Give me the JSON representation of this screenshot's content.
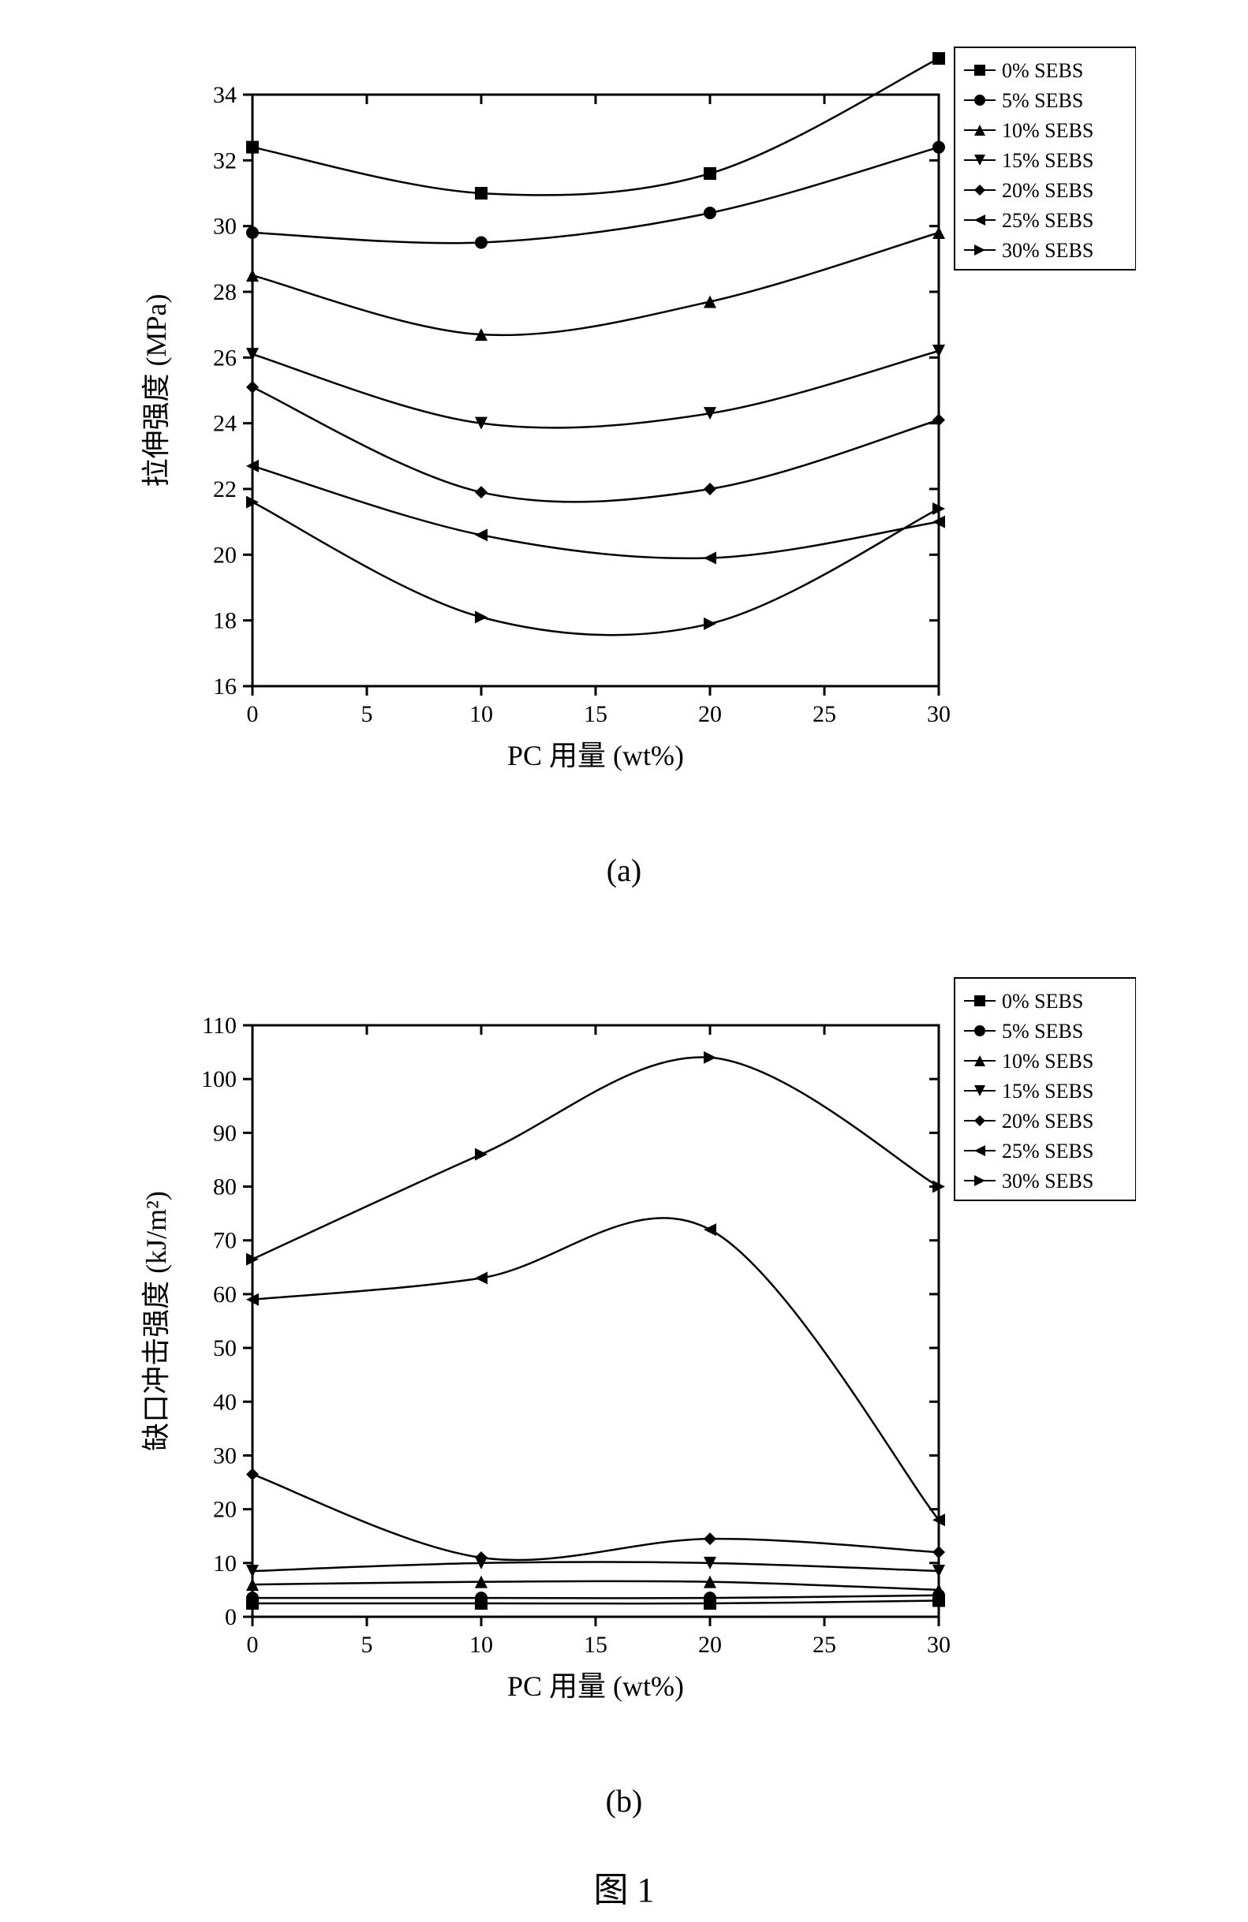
{
  "figure_label": "图 1",
  "caption_a": "(a)",
  "caption_b": "(b)",
  "legend_items": [
    {
      "label": "0% SEBS",
      "marker": "square-filled"
    },
    {
      "label": "5% SEBS",
      "marker": "circle-filled"
    },
    {
      "label": "10% SEBS",
      "marker": "triangle-up-filled"
    },
    {
      "label": "15% SEBS",
      "marker": "triangle-down-filled"
    },
    {
      "label": "20% SEBS",
      "marker": "diamond-filled"
    },
    {
      "label": "25% SEBS",
      "marker": "triangle-left-filled"
    },
    {
      "label": "30% SEBS",
      "marker": "triangle-right-filled"
    }
  ],
  "chart_a": {
    "type": "line",
    "xlabel": "PC 用量 (wt%)",
    "ylabel": "拉伸强度 (MPa)",
    "label_fontsize": 36,
    "tick_fontsize": 30,
    "legend_fontsize": 26,
    "line_color": "#000000",
    "marker_color": "#000000",
    "text_color": "#000000",
    "background_color": "#ffffff",
    "axis_color": "#000000",
    "line_width": 2.5,
    "marker_size": 16,
    "xlim": [
      0,
      30
    ],
    "x_ticks": [
      0,
      5,
      10,
      15,
      20,
      25,
      30
    ],
    "ylim": [
      16,
      34
    ],
    "y_ticks": [
      16,
      18,
      20,
      22,
      24,
      26,
      28,
      30,
      32,
      34
    ],
    "grid": false,
    "series": [
      {
        "name": "0% SEBS",
        "x": [
          0,
          10,
          20,
          30
        ],
        "y": [
          32.4,
          31.0,
          31.6,
          35.1
        ]
      },
      {
        "name": "5% SEBS",
        "x": [
          0,
          10,
          20,
          30
        ],
        "y": [
          29.8,
          29.5,
          30.4,
          32.4
        ]
      },
      {
        "name": "10% SEBS",
        "x": [
          0,
          10,
          20,
          30
        ],
        "y": [
          28.5,
          26.7,
          27.7,
          29.8
        ]
      },
      {
        "name": "15% SEBS",
        "x": [
          0,
          10,
          20,
          30
        ],
        "y": [
          26.1,
          24.0,
          24.3,
          26.2
        ]
      },
      {
        "name": "20% SEBS",
        "x": [
          0,
          10,
          20,
          30
        ],
        "y": [
          25.1,
          21.9,
          22.0,
          24.1
        ]
      },
      {
        "name": "25% SEBS",
        "x": [
          0,
          10,
          20,
          30
        ],
        "y": [
          22.7,
          20.6,
          19.9,
          21.0
        ]
      },
      {
        "name": "30% SEBS",
        "x": [
          0,
          10,
          20,
          30
        ],
        "y": [
          21.6,
          18.1,
          17.9,
          21.4
        ]
      }
    ]
  },
  "chart_b": {
    "type": "line",
    "xlabel": "PC 用量 (wt%)",
    "ylabel": "缺口冲击强度 (kJ/m²)",
    "label_fontsize": 36,
    "tick_fontsize": 30,
    "legend_fontsize": 26,
    "line_color": "#000000",
    "marker_color": "#000000",
    "text_color": "#000000",
    "background_color": "#ffffff",
    "axis_color": "#000000",
    "line_width": 2.5,
    "marker_size": 16,
    "xlim": [
      0,
      30
    ],
    "x_ticks": [
      0,
      5,
      10,
      15,
      20,
      25,
      30
    ],
    "ylim": [
      0,
      110
    ],
    "y_ticks": [
      0,
      10,
      20,
      30,
      40,
      50,
      60,
      70,
      80,
      90,
      100,
      110
    ],
    "grid": false,
    "series": [
      {
        "name": "0% SEBS",
        "x": [
          0,
          10,
          20,
          30
        ],
        "y": [
          2.5,
          2.5,
          2.5,
          3.0
        ]
      },
      {
        "name": "5% SEBS",
        "x": [
          0,
          10,
          20,
          30
        ],
        "y": [
          3.5,
          3.5,
          3.5,
          4.0
        ]
      },
      {
        "name": "10% SEBS",
        "x": [
          0,
          10,
          20,
          30
        ],
        "y": [
          6.0,
          6.5,
          6.5,
          5.0
        ]
      },
      {
        "name": "15% SEBS",
        "x": [
          0,
          10,
          20,
          30
        ],
        "y": [
          8.5,
          10.0,
          10.0,
          8.5
        ]
      },
      {
        "name": "20% SEBS",
        "x": [
          0,
          10,
          20,
          30
        ],
        "y": [
          26.5,
          11.0,
          14.5,
          12.0
        ]
      },
      {
        "name": "25% SEBS",
        "x": [
          0,
          10,
          20,
          30
        ],
        "y": [
          59.0,
          63.0,
          72.0,
          18.0
        ]
      },
      {
        "name": "30% SEBS",
        "x": [
          0,
          10,
          20,
          30
        ],
        "y": [
          66.5,
          86.0,
          104.0,
          80.0
        ]
      }
    ]
  }
}
